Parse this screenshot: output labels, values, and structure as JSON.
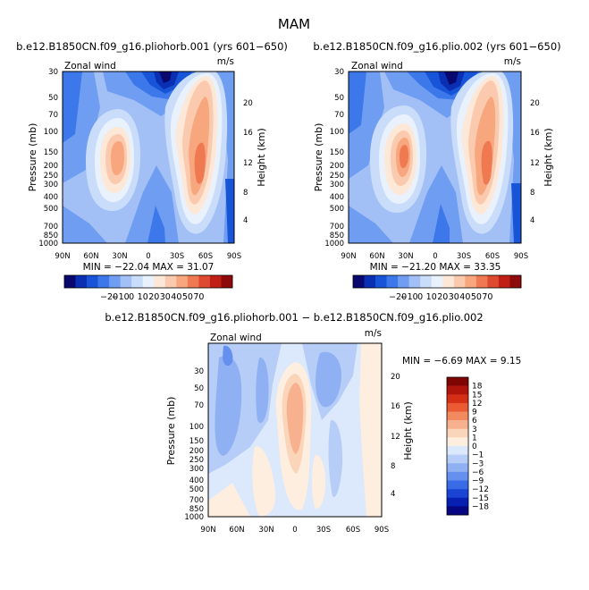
{
  "figure": {
    "title": "MAM"
  },
  "chart_data": [
    {
      "type": "heatmap",
      "title": "b.e12.B1850CN.f09_g16.pliohorb.001 (yrs 601−650)",
      "subtitle_left": "Zonal wind",
      "subtitle_right": "m/s",
      "xlabel": "",
      "ylabel": "Pressure (mb)",
      "ylabel_right": "Height (km)",
      "x_ticks": [
        "90N",
        "60N",
        "30N",
        "0",
        "30S",
        "60S",
        "90S"
      ],
      "y_ticks": [
        "30",
        "50",
        "70",
        "100",
        "150",
        "200",
        "250",
        "300",
        "400",
        "500",
        "700",
        "850",
        "1000"
      ],
      "height_ticks": [
        "20",
        "16",
        "12",
        "8",
        "4"
      ],
      "stats_text": "MIN = −22.04   MAX =  31.07",
      "colorbar_ticks": [
        "−20",
        "−10",
        "0",
        "10",
        "20",
        "30",
        "40",
        "50",
        "70"
      ]
    },
    {
      "type": "heatmap",
      "title": "b.e12.B1850CN.f09_g16.plio.002 (yrs 601−650)",
      "subtitle_left": "Zonal wind",
      "subtitle_right": "m/s",
      "xlabel": "",
      "ylabel": "Pressure (mb)",
      "ylabel_right": "Height (km)",
      "x_ticks": [
        "90N",
        "60N",
        "30N",
        "0",
        "30S",
        "60S",
        "90S"
      ],
      "y_ticks": [
        "30",
        "50",
        "70",
        "100",
        "150",
        "200",
        "250",
        "300",
        "400",
        "500",
        "700",
        "850",
        "1000"
      ],
      "height_ticks": [
        "20",
        "16",
        "12",
        "8",
        "4"
      ],
      "stats_text": "MIN = −21.20   MAX =  33.35",
      "colorbar_ticks": [
        "−20",
        "−10",
        "0",
        "10",
        "20",
        "30",
        "40",
        "50",
        "70"
      ]
    },
    {
      "type": "heatmap",
      "title": "b.e12.B1850CN.f09_g16.pliohorb.001 − b.e12.B1850CN.f09_g16.plio.002",
      "subtitle_left": "Zonal wind",
      "subtitle_right": "m/s",
      "xlabel": "",
      "ylabel": "Pressure (mb)",
      "ylabel_right": "Height (km)",
      "x_ticks": [
        "90N",
        "60N",
        "30N",
        "0",
        "30S",
        "60S",
        "90S"
      ],
      "y_ticks": [
        "30",
        "50",
        "70",
        "100",
        "150",
        "200",
        "250",
        "300",
        "400",
        "500",
        "700",
        "850",
        "1000"
      ],
      "height_ticks": [
        "20",
        "16",
        "12",
        "8",
        "4"
      ],
      "stats_text": "MIN =  −6.69   MAX =   9.15",
      "colorbar_ticks": [
        "18",
        "15",
        "12",
        "9",
        "6",
        "3",
        "1",
        "0",
        "−1",
        "−3",
        "−6",
        "−9",
        "−12",
        "−15",
        "−18"
      ]
    }
  ],
  "colors": {
    "full_scale": [
      "#08086e",
      "#0a2fb2",
      "#1854d8",
      "#3c78ea",
      "#6f9df2",
      "#a2c0f6",
      "#c9dcf9",
      "#e9f1fd",
      "#fde8d8",
      "#fbcaae",
      "#f7a67e",
      "#ef7a52",
      "#dd4a30",
      "#c01f16",
      "#8e0a0a"
    ],
    "diff_scale": [
      "#060682",
      "#0820b2",
      "#1a44d4",
      "#3a6be6",
      "#6690ef",
      "#8fb0f3",
      "#b6cdf7",
      "#dce8fb",
      "#fdeee0",
      "#fbd5b9",
      "#f8b18f",
      "#f3895f",
      "#ea5b33",
      "#d42e17",
      "#b0150b",
      "#800606"
    ]
  }
}
